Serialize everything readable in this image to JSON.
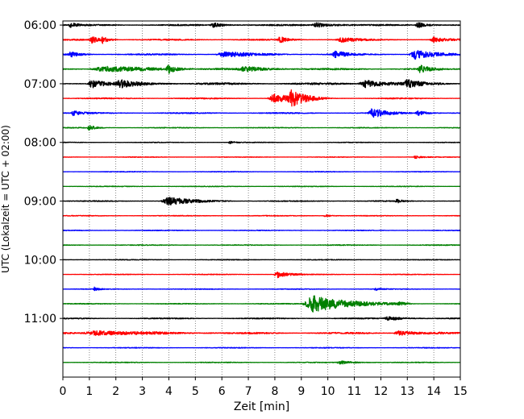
{
  "chart_data": {
    "type": "line",
    "xlabel": "Zeit  [min]",
    "ylabel": "UTC (Lokalzeit = UTC + 02:00)",
    "xlim": [
      0,
      15
    ],
    "x_ticks": [
      0,
      1,
      2,
      3,
      4,
      5,
      6,
      7,
      8,
      9,
      10,
      11,
      12,
      13,
      14,
      15
    ],
    "ylim_hours": [
      5.93,
      12.0
    ],
    "y_ticks": [
      {
        "label": "06:00",
        "hour": 6.0
      },
      {
        "label": "07:00",
        "hour": 7.0
      },
      {
        "label": "08:00",
        "hour": 8.0
      },
      {
        "label": "09:00",
        "hour": 9.0
      },
      {
        "label": "10:00",
        "hour": 10.0
      },
      {
        "label": "11:00",
        "hour": 11.0
      }
    ],
    "grid": "vertical dotted at each minute",
    "colors": [
      "#000000",
      "#ff0000",
      "#0000ff",
      "#008000"
    ],
    "traces": [
      {
        "start": "06:00",
        "color": "#000000",
        "noise": 0.9,
        "events": [
          {
            "t": 0.3,
            "amp": 1.2,
            "dur": 0.2
          },
          {
            "t": 5.7,
            "amp": 1.1,
            "dur": 0.4
          },
          {
            "t": 9.6,
            "amp": 1.2,
            "dur": 0.6
          },
          {
            "t": 13.4,
            "amp": 1.6,
            "dur": 0.3
          }
        ]
      },
      {
        "start": "06:15",
        "color": "#ff0000",
        "noise": 0.8,
        "events": [
          {
            "t": 1.1,
            "amp": 1.8,
            "dur": 0.3
          },
          {
            "t": 1.5,
            "amp": 1.5,
            "dur": 0.2
          },
          {
            "t": 8.2,
            "amp": 1.5,
            "dur": 0.3
          },
          {
            "t": 10.5,
            "amp": 1.4,
            "dur": 0.5
          },
          {
            "t": 14.0,
            "amp": 1.4,
            "dur": 0.4
          }
        ]
      },
      {
        "start": "06:30",
        "color": "#0000ff",
        "noise": 0.9,
        "events": [
          {
            "t": 0.3,
            "amp": 1.3,
            "dur": 0.3
          },
          {
            "t": 6.1,
            "amp": 1.5,
            "dur": 0.8
          },
          {
            "t": 10.3,
            "amp": 1.8,
            "dur": 0.4
          },
          {
            "t": 13.3,
            "amp": 2.6,
            "dur": 0.6
          }
        ]
      },
      {
        "start": "06:45",
        "color": "#008000",
        "noise": 1.0,
        "events": [
          {
            "t": 1.6,
            "amp": 1.4,
            "dur": 1.5
          },
          {
            "t": 4.0,
            "amp": 2.0,
            "dur": 0.3
          },
          {
            "t": 6.9,
            "amp": 1.2,
            "dur": 0.8
          },
          {
            "t": 13.5,
            "amp": 2.0,
            "dur": 0.3
          }
        ]
      },
      {
        "start": "07:00",
        "color": "#000000",
        "noise": 1.2,
        "events": [
          {
            "t": 1.1,
            "amp": 2.4,
            "dur": 0.4
          },
          {
            "t": 2.2,
            "amp": 1.8,
            "dur": 0.7
          },
          {
            "t": 11.4,
            "amp": 2.2,
            "dur": 0.7
          },
          {
            "t": 13.0,
            "amp": 1.8,
            "dur": 0.5
          }
        ]
      },
      {
        "start": "07:15",
        "color": "#ff0000",
        "noise": 0.7,
        "events": [
          {
            "t": 8.0,
            "amp": 2.4,
            "dur": 0.7
          },
          {
            "t": 8.65,
            "amp": 3.8,
            "dur": 0.45
          }
        ]
      },
      {
        "start": "07:30",
        "color": "#0000ff",
        "noise": 0.7,
        "events": [
          {
            "t": 0.4,
            "amp": 1.2,
            "dur": 0.3
          },
          {
            "t": 11.7,
            "amp": 2.6,
            "dur": 0.5
          },
          {
            "t": 13.4,
            "amp": 1.4,
            "dur": 0.3
          }
        ]
      },
      {
        "start": "07:45",
        "color": "#008000",
        "noise": 0.5,
        "events": [
          {
            "t": 1.0,
            "amp": 1.5,
            "dur": 0.2
          }
        ]
      },
      {
        "start": "08:00",
        "color": "#000000",
        "noise": 0.4,
        "events": [
          {
            "t": 6.3,
            "amp": 0.8,
            "dur": 0.2
          }
        ]
      },
      {
        "start": "08:15",
        "color": "#ff0000",
        "noise": 0.4,
        "events": [
          {
            "t": 13.3,
            "amp": 0.8,
            "dur": 0.2
          }
        ]
      },
      {
        "start": "08:30",
        "color": "#0000ff",
        "noise": 0.4,
        "events": []
      },
      {
        "start": "08:45",
        "color": "#008000",
        "noise": 0.45,
        "events": []
      },
      {
        "start": "09:00",
        "color": "#000000",
        "noise": 0.6,
        "events": [
          {
            "t": 4.0,
            "amp": 2.2,
            "dur": 0.8
          },
          {
            "t": 12.6,
            "amp": 1.0,
            "dur": 0.2
          }
        ]
      },
      {
        "start": "09:15",
        "color": "#ff0000",
        "noise": 0.45,
        "events": [
          {
            "t": 9.9,
            "amp": 0.8,
            "dur": 0.2
          }
        ]
      },
      {
        "start": "09:30",
        "color": "#0000ff",
        "noise": 0.45,
        "events": []
      },
      {
        "start": "09:45",
        "color": "#008000",
        "noise": 0.5,
        "events": []
      },
      {
        "start": "10:00",
        "color": "#000000",
        "noise": 0.45,
        "events": []
      },
      {
        "start": "10:15",
        "color": "#ff0000",
        "noise": 0.45,
        "events": [
          {
            "t": 8.1,
            "amp": 1.8,
            "dur": 0.4
          }
        ]
      },
      {
        "start": "10:30",
        "color": "#0000ff",
        "noise": 0.45,
        "events": [
          {
            "t": 1.2,
            "amp": 1.0,
            "dur": 0.15
          },
          {
            "t": 11.8,
            "amp": 1.0,
            "dur": 0.15
          }
        ]
      },
      {
        "start": "10:45",
        "color": "#008000",
        "noise": 0.5,
        "events": [
          {
            "t": 9.5,
            "amp": 4.8,
            "dur": 1.2
          },
          {
            "t": 12.7,
            "amp": 0.9,
            "dur": 0.2
          }
        ]
      },
      {
        "start": "11:00",
        "color": "#000000",
        "noise": 0.7,
        "events": [
          {
            "t": 12.3,
            "amp": 1.2,
            "dur": 0.5
          }
        ]
      },
      {
        "start": "11:15",
        "color": "#ff0000",
        "noise": 1.0,
        "events": [
          {
            "t": 1.3,
            "amp": 1.3,
            "dur": 1.5
          },
          {
            "t": 12.7,
            "amp": 1.3,
            "dur": 0.6
          }
        ]
      },
      {
        "start": "11:30",
        "color": "#0000ff",
        "noise": 0.5,
        "events": []
      },
      {
        "start": "11:45",
        "color": "#008000",
        "noise": 0.5,
        "events": [
          {
            "t": 10.5,
            "amp": 0.9,
            "dur": 0.5
          }
        ]
      }
    ]
  }
}
